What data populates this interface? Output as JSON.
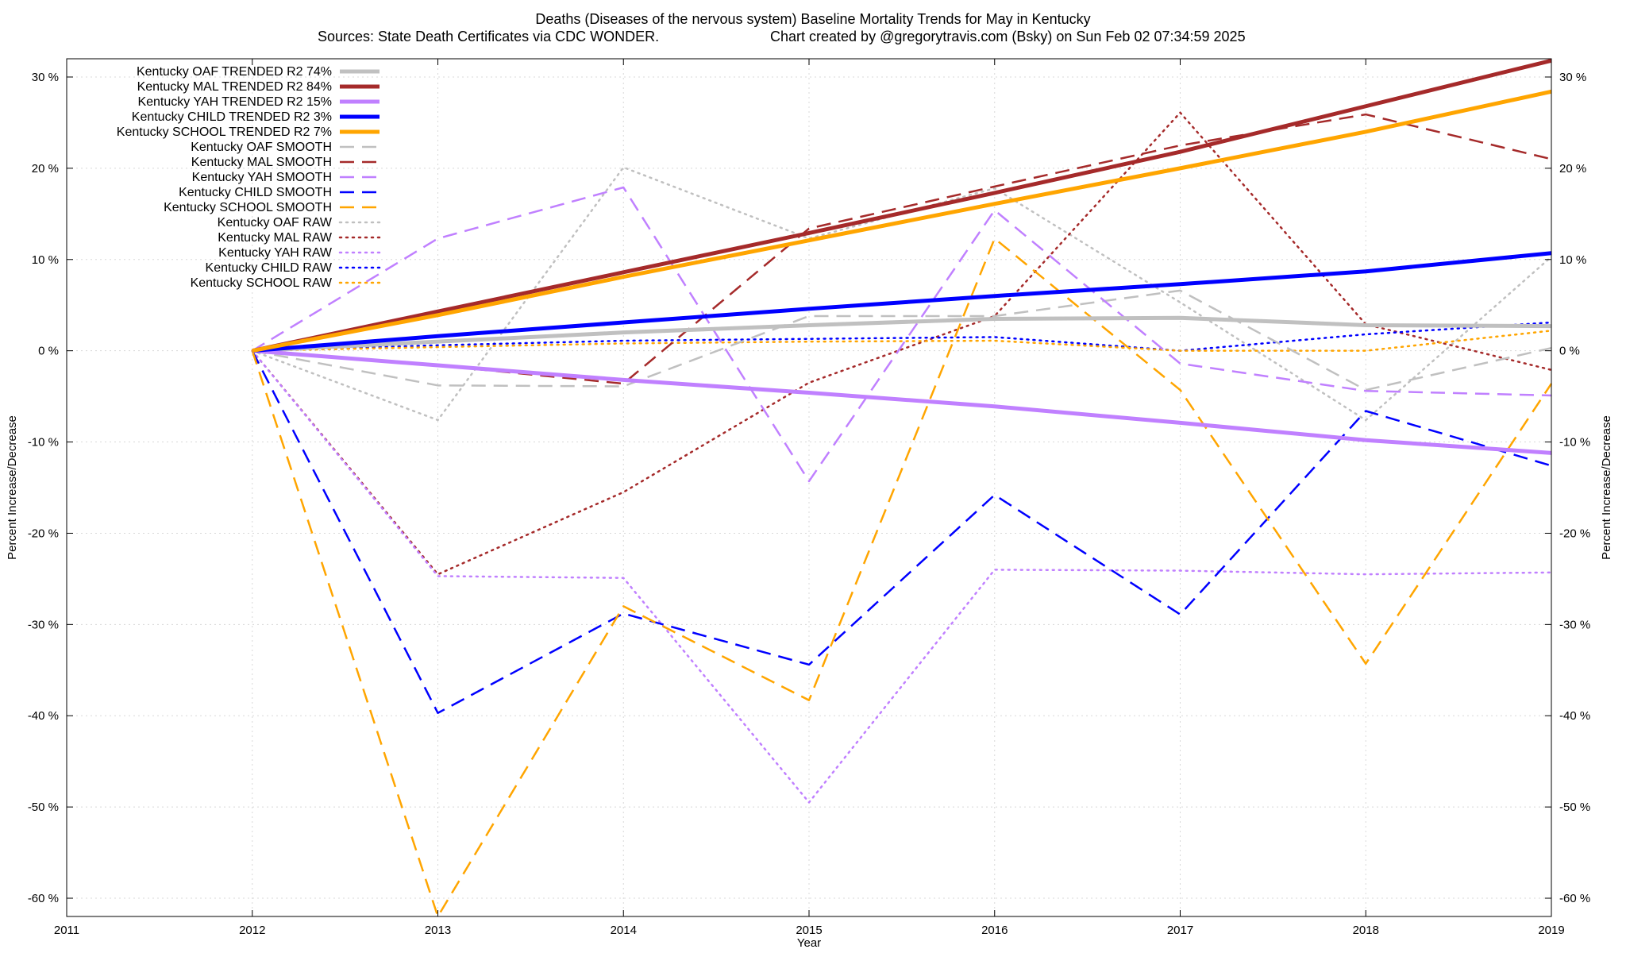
{
  "chart_data": {
    "type": "line",
    "title": "Deaths (Diseases of the nervous system)  Baseline Mortality Trends for May in Kentucky",
    "subtitle_left": "Sources: State Death Certificates via CDC WONDER.",
    "subtitle_right": "Chart created by @gregorytravis.com (Bsky) on Sun Feb 02 07:34:59 2025",
    "xlabel": "Year",
    "ylabel_left": "Percent Increase/Decrease",
    "ylabel_right": "Percent Increase/Decrease",
    "xlim": [
      2011,
      2019
    ],
    "ylim": [
      -62,
      32
    ],
    "x_ticks": [
      "2011",
      "2012",
      "2013",
      "2014",
      "2015",
      "2016",
      "2017",
      "2018",
      "2019"
    ],
    "y_ticks": [
      {
        "value": 30,
        "label": "30 %"
      },
      {
        "value": 20,
        "label": "20 %"
      },
      {
        "value": 10,
        "label": "10 %"
      },
      {
        "value": 0,
        "label": "0 %"
      },
      {
        "value": -10,
        "label": "-10 %"
      },
      {
        "value": -20,
        "label": "-20 %"
      },
      {
        "value": -30,
        "label": "-30 %"
      },
      {
        "value": -40,
        "label": "-40 %"
      },
      {
        "value": -50,
        "label": "-50 %"
      },
      {
        "value": -60,
        "label": "-60 %"
      }
    ],
    "grid": true,
    "legend_position": "top-left",
    "x": [
      2012,
      2013,
      2014,
      2015,
      2016,
      2017,
      2018,
      2019
    ],
    "series": [
      {
        "name": "Kentucky OAF TRENDED R2  74%",
        "style": "solid",
        "color": "#c0c0c0",
        "values": [
          0,
          1.0,
          2.0,
          2.8,
          3.5,
          3.6,
          2.8,
          2.7
        ]
      },
      {
        "name": "Kentucky MAL TRENDED R2  84%",
        "style": "solid",
        "color": "#a52a2a",
        "values": [
          0,
          4.3,
          8.6,
          12.9,
          17.3,
          21.8,
          26.8,
          31.8
        ]
      },
      {
        "name": "Kentucky YAH TRENDED R2  15%",
        "style": "solid",
        "color": "#c080ff",
        "values": [
          0,
          -1.6,
          -3.2,
          -4.6,
          -6.1,
          -7.9,
          -9.8,
          -11.2
        ]
      },
      {
        "name": "Kentucky CHILD TRENDED R2   3%",
        "style": "solid",
        "color": "#0000ff",
        "values": [
          0,
          1.6,
          3.1,
          4.6,
          6.0,
          7.3,
          8.7,
          10.7
        ]
      },
      {
        "name": "Kentucky SCHOOL TRENDED R2   7%",
        "style": "solid",
        "color": "#ffa500",
        "values": [
          0,
          3.9,
          8.1,
          12.1,
          16.1,
          20.0,
          24.0,
          28.4
        ]
      },
      {
        "name": "Kentucky OAF SMOOTH",
        "style": "dashed",
        "color": "#c0c0c0",
        "values": [
          0,
          -3.8,
          -3.9,
          3.8,
          3.8,
          6.6,
          -4.3,
          0.3
        ]
      },
      {
        "name": "Kentucky MAL SMOOTH",
        "style": "dashed",
        "color": "#a52a2a",
        "values": [
          0,
          -1.6,
          -3.6,
          13.4,
          18.0,
          22.5,
          25.9,
          21.0
        ]
      },
      {
        "name": "Kentucky YAH SMOOTH",
        "style": "dashed",
        "color": "#c080ff",
        "values": [
          0,
          12.3,
          17.9,
          -14.3,
          15.4,
          -1.4,
          -4.4,
          -4.9
        ]
      },
      {
        "name": "Kentucky CHILD SMOOTH",
        "style": "dashed",
        "color": "#0000ff",
        "values": [
          0,
          -39.7,
          -28.8,
          -34.4,
          -15.8,
          -28.9,
          -6.6,
          -12.6
        ]
      },
      {
        "name": "Kentucky SCHOOL SMOOTH",
        "style": "dashed",
        "color": "#ffa500",
        "values": [
          0,
          -62.0,
          -28.0,
          -38.3,
          12.3,
          -4.3,
          -34.3,
          -3.6
        ]
      },
      {
        "name": "Kentucky OAF RAW",
        "style": "dotted",
        "color": "#c0c0c0",
        "values": [
          0,
          -7.6,
          20.1,
          12.3,
          17.8,
          5.3,
          -7.6,
          10.3
        ]
      },
      {
        "name": "Kentucky MAL RAW",
        "style": "dotted",
        "color": "#a52a2a",
        "values": [
          0,
          -24.5,
          -15.5,
          -3.5,
          3.8,
          26.1,
          2.9,
          -2.1
        ]
      },
      {
        "name": "Kentucky YAH RAW",
        "style": "dotted",
        "color": "#c080ff",
        "values": [
          0,
          -24.7,
          -24.9,
          -49.5,
          -24.0,
          -24.1,
          -24.5,
          -24.3
        ]
      },
      {
        "name": "Kentucky CHILD RAW",
        "style": "dotted",
        "color": "#0000ff",
        "values": [
          0,
          0.6,
          1.1,
          1.3,
          1.5,
          0.0,
          1.8,
          3.1
        ]
      },
      {
        "name": "Kentucky SCHOOL RAW",
        "style": "dotted",
        "color": "#ffa500",
        "values": [
          0,
          0.4,
          0.8,
          1.0,
          1.1,
          0.0,
          0.0,
          2.2
        ]
      }
    ]
  }
}
